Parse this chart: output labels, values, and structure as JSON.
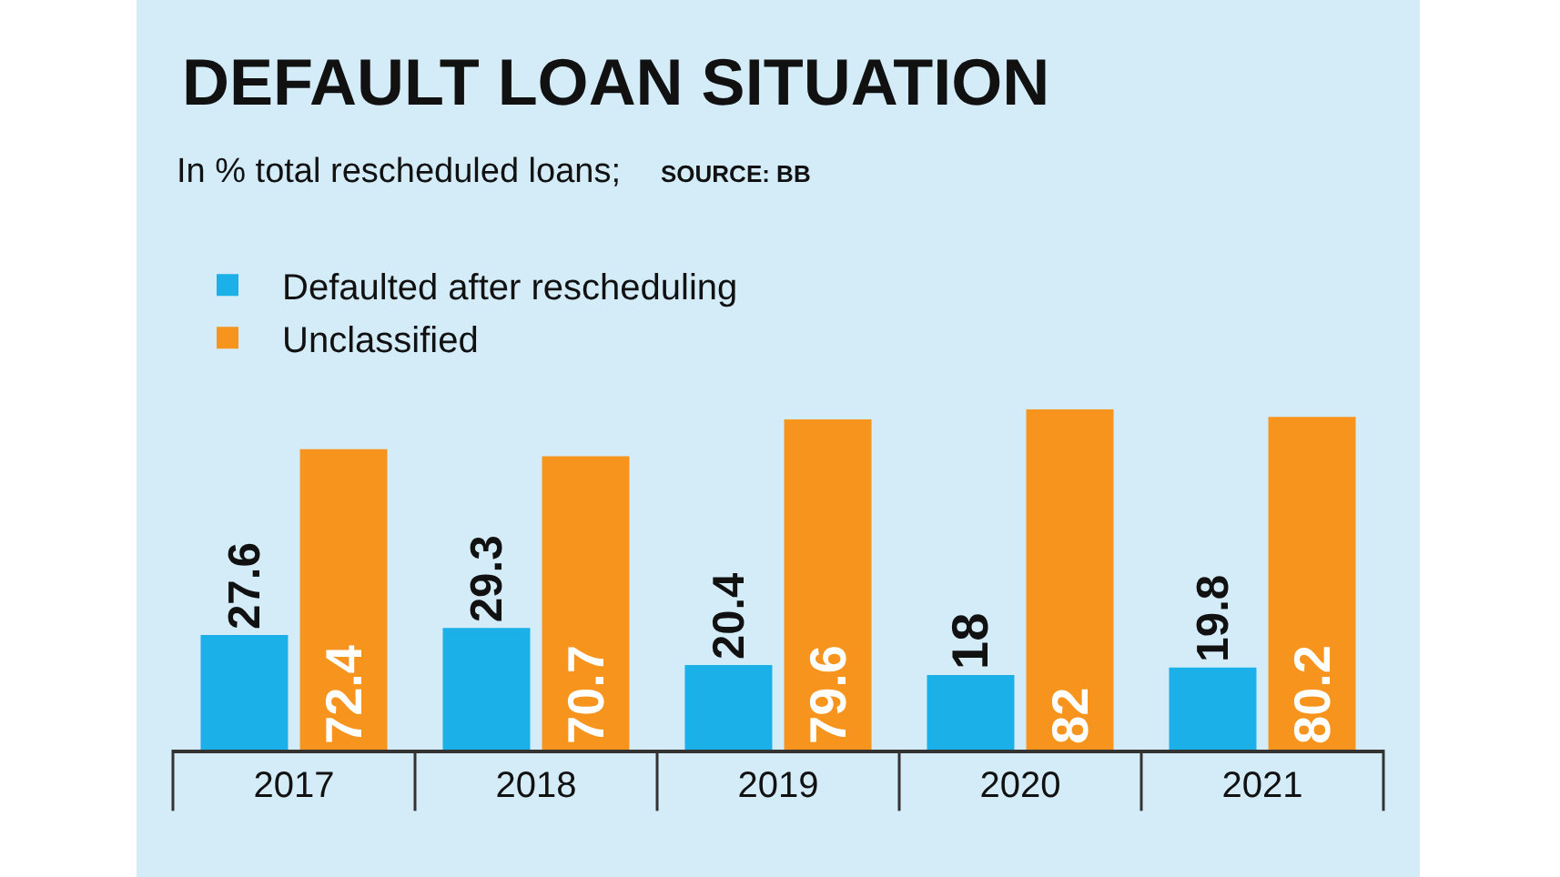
{
  "chart_data": {
    "type": "bar",
    "title": "DEFAULT LOAN SITUATION",
    "subtitle": "In % total rescheduled loans;",
    "annotations": [
      "SOURCE: BB"
    ],
    "categories": [
      "2017",
      "2018",
      "2019",
      "2020",
      "2021"
    ],
    "series": [
      {
        "name": "Defaulted after rescheduling",
        "color": "#1cb0e8",
        "values": [
          27.6,
          29.3,
          20.4,
          18,
          19.8
        ]
      },
      {
        "name": "Unclassified",
        "color": "#f7941d",
        "values": [
          72.4,
          70.7,
          79.6,
          82,
          80.2
        ]
      }
    ],
    "data_labels": true,
    "legend": "top left",
    "grid": false
  }
}
